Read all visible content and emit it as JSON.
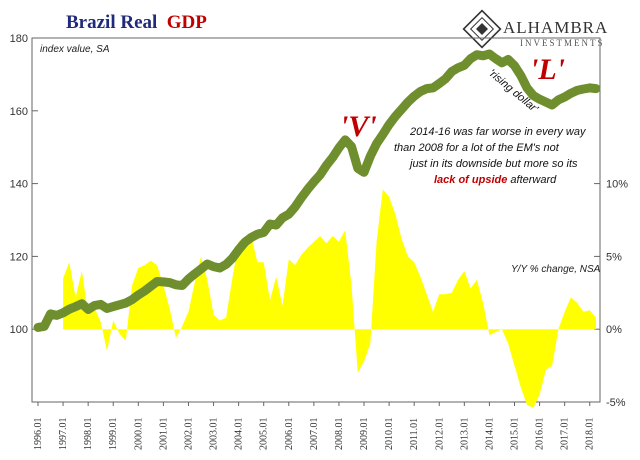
{
  "title": {
    "part1": "Brazil Real",
    "part2": "GDP"
  },
  "logo": {
    "name": "ALHAMBRA",
    "sub": "INVESTMENTS"
  },
  "chart_data": {
    "type": "line+area",
    "title": "Brazil Real GDP",
    "left_axis": {
      "label": "index value, SA",
      "range": [
        80,
        180
      ],
      "ticks": [
        180,
        160,
        140,
        120,
        100
      ]
    },
    "right_axis": {
      "label": "Y/Y % change, NSA",
      "range": [
        -5,
        20
      ],
      "ticks": [
        "10%",
        "5%",
        "0%",
        "-5%"
      ],
      "tick_values": [
        10,
        5,
        0,
        -5
      ]
    },
    "x_labels": [
      "1996.01",
      "1997.01",
      "1998.01",
      "1999.01",
      "2000.01",
      "2001.01",
      "2002.01",
      "2003.01",
      "2004.01",
      "2005.01",
      "2006.01",
      "2007.01",
      "2008.01",
      "2009.01",
      "2010.01",
      "2011.01",
      "2012.01",
      "2013.01",
      "2014.01",
      "2015.01",
      "2016.01",
      "2017.01",
      "2018.01"
    ],
    "series": [
      {
        "name": "Real GDP index (SA)",
        "color": "#6f8f2e",
        "type": "line",
        "x": [
          1996.0,
          1996.25,
          1996.5,
          1996.75,
          1997.0,
          1997.25,
          1997.5,
          1997.75,
          1998.0,
          1998.25,
          1998.5,
          1998.75,
          1999.0,
          1999.25,
          1999.5,
          1999.75,
          2000.0,
          2000.25,
          2000.5,
          2000.75,
          2001.0,
          2001.25,
          2001.5,
          2001.75,
          2002.0,
          2002.25,
          2002.5,
          2002.75,
          2003.0,
          2003.25,
          2003.5,
          2003.75,
          2004.0,
          2004.25,
          2004.5,
          2004.75,
          2005.0,
          2005.25,
          2005.5,
          2005.75,
          2006.0,
          2006.25,
          2006.5,
          2006.75,
          2007.0,
          2007.25,
          2007.5,
          2007.75,
          2008.0,
          2008.25,
          2008.5,
          2008.75,
          2009.0,
          2009.25,
          2009.5,
          2009.75,
          2010.0,
          2010.25,
          2010.5,
          2010.75,
          2011.0,
          2011.25,
          2011.5,
          2011.75,
          2012.0,
          2012.25,
          2012.5,
          2012.75,
          2013.0,
          2013.25,
          2013.5,
          2013.75,
          2014.0,
          2014.25,
          2014.5,
          2014.75,
          2015.0,
          2015.25,
          2015.5,
          2015.75,
          2016.0,
          2016.25,
          2016.5,
          2016.75,
          2017.0,
          2017.25,
          2017.5,
          2017.75,
          2018.0,
          2018.25
        ],
        "values": [
          100.5,
          100.8,
          104.2,
          103.8,
          104.5,
          105.5,
          106.2,
          107.0,
          105.4,
          106.5,
          106.8,
          105.7,
          106.2,
          106.7,
          107.2,
          108.1,
          109.4,
          110.5,
          111.8,
          113.1,
          113.0,
          112.8,
          112.2,
          112.0,
          113.8,
          115.2,
          116.5,
          117.9,
          117.2,
          116.8,
          117.8,
          119.5,
          121.8,
          123.9,
          125.2,
          126.1,
          126.6,
          128.9,
          128.6,
          130.6,
          131.6,
          133.6,
          136.1,
          138.4,
          140.5,
          142.4,
          145.0,
          147.2,
          149.8,
          152.0,
          150.2,
          144.2,
          143.1,
          147.5,
          151.0,
          153.5,
          156.2,
          158.5,
          160.4,
          162.4,
          164.0,
          165.3,
          166.1,
          166.3,
          167.5,
          168.8,
          170.8,
          171.8,
          172.5,
          174.3,
          175.4,
          175.1,
          175.6,
          174.3,
          173.2,
          174.1,
          172.4,
          169.7,
          166.3,
          164.2,
          163.2,
          162.4,
          161.6,
          163.0,
          163.8,
          164.8,
          165.6,
          166.0,
          166.3,
          166.1
        ]
      },
      {
        "name": "Y/Y % change (NSA)",
        "color": "#ffff00",
        "type": "area",
        "x": [
          1997.0,
          1997.25,
          1997.5,
          1997.75,
          1998.0,
          1998.25,
          1998.5,
          1998.75,
          1999.0,
          1999.25,
          1999.5,
          1999.75,
          2000.0,
          2000.25,
          2000.5,
          2000.75,
          2001.0,
          2001.25,
          2001.5,
          2001.75,
          2002.0,
          2002.25,
          2002.5,
          2002.75,
          2003.0,
          2003.25,
          2003.5,
          2003.75,
          2004.0,
          2004.25,
          2004.5,
          2004.75,
          2005.0,
          2005.25,
          2005.5,
          2005.75,
          2006.0,
          2006.25,
          2006.5,
          2006.75,
          2007.0,
          2007.25,
          2007.5,
          2007.75,
          2008.0,
          2008.25,
          2008.5,
          2008.75,
          2009.0,
          2009.25,
          2009.5,
          2009.75,
          2010.0,
          2010.25,
          2010.5,
          2010.75,
          2011.0,
          2011.25,
          2011.5,
          2011.75,
          2012.0,
          2012.25,
          2012.5,
          2012.75,
          2013.0,
          2013.25,
          2013.5,
          2013.75,
          2014.0,
          2014.25,
          2014.5,
          2014.75,
          2015.0,
          2015.25,
          2015.5,
          2015.75,
          2016.0,
          2016.25,
          2016.5,
          2016.75,
          2017.0,
          2017.25,
          2017.5,
          2017.75,
          2018.0,
          2018.25
        ],
        "values": [
          3.5,
          4.6,
          2.2,
          4.0,
          1.0,
          1.5,
          0.5,
          -1.5,
          0.6,
          -0.3,
          -0.8,
          3.0,
          4.2,
          4.4,
          4.7,
          4.4,
          3.0,
          1.4,
          -0.6,
          0.2,
          1.2,
          3.2,
          5.0,
          3.4,
          1.0,
          0.6,
          0.8,
          3.5,
          6.0,
          6.3,
          6.4,
          4.6,
          4.6,
          2.0,
          3.6,
          1.6,
          4.8,
          4.4,
          5.1,
          5.6,
          6.0,
          6.4,
          5.9,
          6.4,
          6.0,
          6.8,
          3.0,
          -3.0,
          -2.2,
          -1.0,
          6.0,
          9.6,
          9.1,
          7.9,
          6.2,
          5.0,
          4.6,
          3.6,
          2.4,
          1.2,
          2.4,
          2.4,
          2.5,
          3.4,
          4.0,
          2.8,
          3.4,
          1.8,
          -0.4,
          -0.2,
          0.0,
          -1.0,
          -2.5,
          -4.0,
          -5.2,
          -5.4,
          -4.5,
          -2.8,
          -2.5,
          0.0,
          1.2,
          2.2,
          1.8,
          1.2,
          1.3,
          0.8
        ]
      }
    ],
    "annotations": {
      "v_label": "'V'",
      "l_label": "'L'",
      "rising_dollar": "'rising dollar'",
      "comment_lines": [
        "2014-16 was far worse in every way",
        "than 2008 for a lot of the EM's not",
        "just in its downside but more so its"
      ],
      "comment_last_red": "lack of upside",
      "comment_last_rest": " afterward"
    }
  }
}
